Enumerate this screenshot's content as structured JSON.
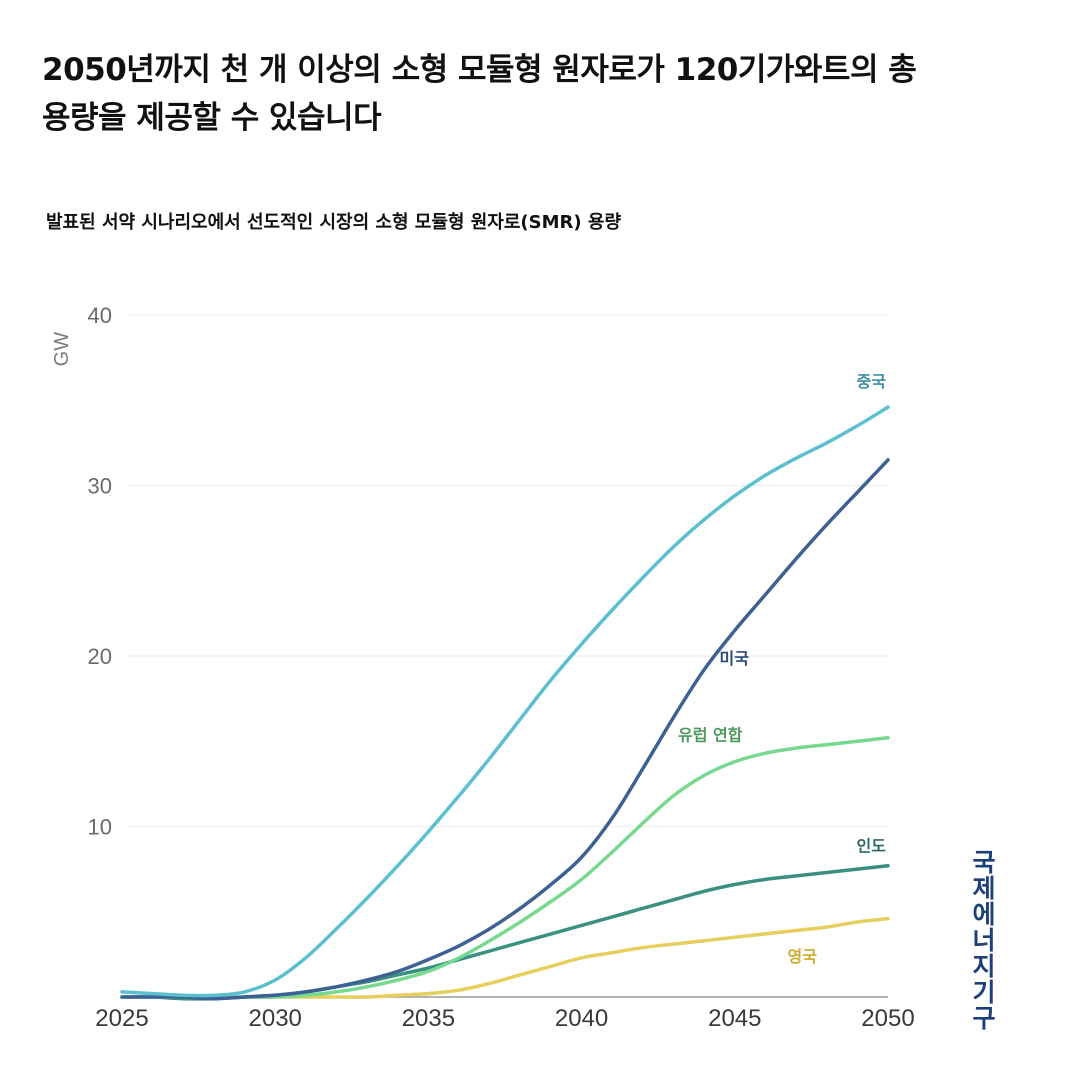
{
  "header": {
    "title": "2050년까지 천 개 이상의 소형 모듈형 원자로가 120기가와트의 총 용량을 제공할 수 있습니다",
    "subtitle": "발표된 서약 시나리오에서 선도적인 시장의 소형 모듈형 원자로(SMR) 용량"
  },
  "source": "국제에너지기구",
  "chart_data": {
    "type": "line",
    "title": "2050년까지 천 개 이상의 소형 모듈형 원자로가 120기가와트의 총 용량을 제공할 수 있습니다",
    "subtitle": "발표된 서약 시나리오에서 선도적인 시장의 소형 모듈형 원자로(SMR) 용량",
    "xlabel": "",
    "ylabel": "GW",
    "xlim": [
      2025,
      2050
    ],
    "ylim": [
      0,
      40
    ],
    "xticks": [
      2025,
      2030,
      2035,
      2040,
      2045,
      2050
    ],
    "yticks": [
      10,
      20,
      30,
      40
    ],
    "grid": true,
    "legend": "inline labels at line ends",
    "x": [
      2025,
      2026,
      2027,
      2028,
      2029,
      2030,
      2031,
      2032,
      2033,
      2034,
      2035,
      2036,
      2037,
      2038,
      2039,
      2040,
      2041,
      2042,
      2043,
      2044,
      2045,
      2046,
      2047,
      2048,
      2049,
      2050
    ],
    "series": [
      {
        "name": "중국",
        "color": "#5bbfd0",
        "values": [
          0.3,
          0.2,
          0.1,
          0.1,
          0.3,
          1.0,
          2.3,
          4.0,
          5.8,
          7.7,
          9.7,
          11.8,
          14.0,
          16.3,
          18.6,
          20.7,
          22.7,
          24.6,
          26.4,
          28.0,
          29.4,
          30.6,
          31.6,
          32.5,
          33.5,
          34.6
        ]
      },
      {
        "name": "미국",
        "color": "#3e6193",
        "values": [
          0.0,
          0.0,
          0.0,
          -0.1,
          0.0,
          0.1,
          0.3,
          0.6,
          1.0,
          1.5,
          2.2,
          3.0,
          4.0,
          5.2,
          6.6,
          8.2,
          10.5,
          13.4,
          16.4,
          19.2,
          21.5,
          23.6,
          25.7,
          27.7,
          29.6,
          31.5
        ]
      },
      {
        "name": "유럽 연합",
        "color": "#77d98f",
        "values": [
          0.0,
          0.0,
          0.0,
          0.0,
          0.0,
          0.0,
          0.1,
          0.3,
          0.6,
          1.0,
          1.5,
          2.3,
          3.3,
          4.4,
          5.6,
          6.9,
          8.5,
          10.2,
          11.8,
          13.0,
          13.8,
          14.3,
          14.6,
          14.8,
          15.0,
          15.2
        ]
      },
      {
        "name": "인도",
        "color": "#3a9080",
        "values": [
          0.0,
          0.0,
          -0.1,
          -0.1,
          0.0,
          0.1,
          0.3,
          0.6,
          0.9,
          1.3,
          1.7,
          2.2,
          2.7,
          3.2,
          3.7,
          4.2,
          4.7,
          5.2,
          5.7,
          6.2,
          6.6,
          6.9,
          7.1,
          7.3,
          7.5,
          7.7
        ]
      },
      {
        "name": "영국",
        "color": "#e6cf5c",
        "values": [
          0.0,
          0.0,
          0.0,
          0.0,
          0.0,
          0.0,
          0.0,
          0.0,
          0.0,
          0.1,
          0.2,
          0.4,
          0.8,
          1.3,
          1.8,
          2.3,
          2.6,
          2.9,
          3.1,
          3.3,
          3.5,
          3.7,
          3.9,
          4.1,
          4.4,
          4.6
        ]
      }
    ]
  }
}
